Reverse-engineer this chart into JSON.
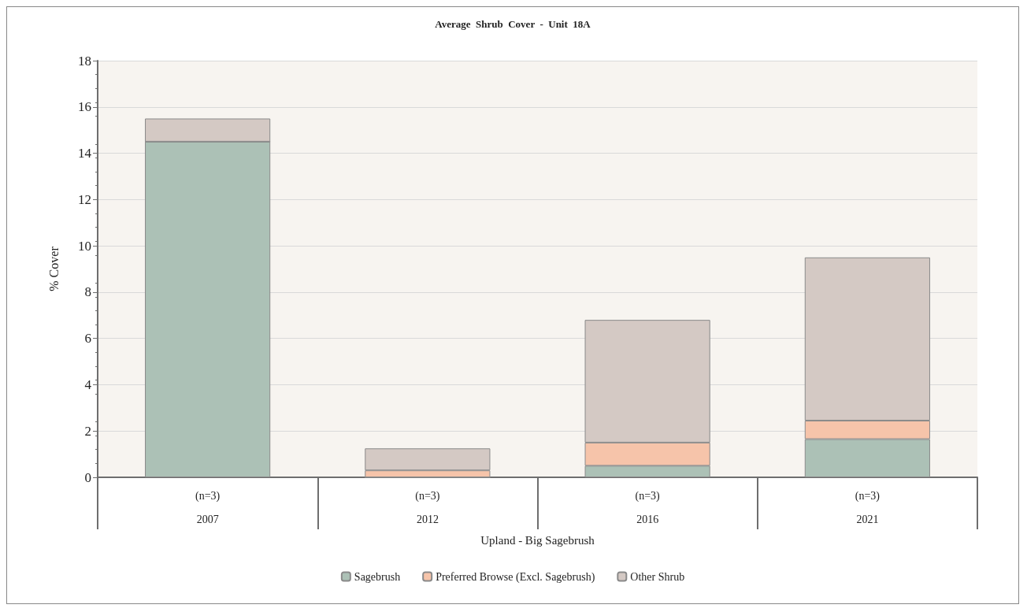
{
  "chart_data": {
    "type": "bar",
    "title": "Average  Shrub  Cover  -  Unit  18A",
    "ylabel": "% Cover",
    "xlabel": "Upland - Big Sagebrush",
    "categories": [
      "(n=3)\n2007",
      "(n=3)\n2012",
      "(n=3)\n2016",
      "(n=3)\n2021"
    ],
    "stacked": true,
    "series": [
      {
        "name": "Sagebrush",
        "color": "#acc1b6",
        "values": [
          14.5,
          0,
          0.5,
          1.65
        ]
      },
      {
        "name": "Preferred Browse (Excl. Sagebrush)",
        "color": "#f6c4aa",
        "values": [
          0,
          0.3,
          1.0,
          0.8
        ]
      },
      {
        "name": "Other Shrub",
        "color": "#d4c9c4",
        "values": [
          1.0,
          0.95,
          5.3,
          7.05
        ]
      }
    ],
    "ylim": [
      0,
      18
    ],
    "yticks": [
      0,
      2,
      4,
      6,
      8,
      10,
      12,
      14,
      16,
      18
    ],
    "grid": "y",
    "legend": "bottom"
  }
}
